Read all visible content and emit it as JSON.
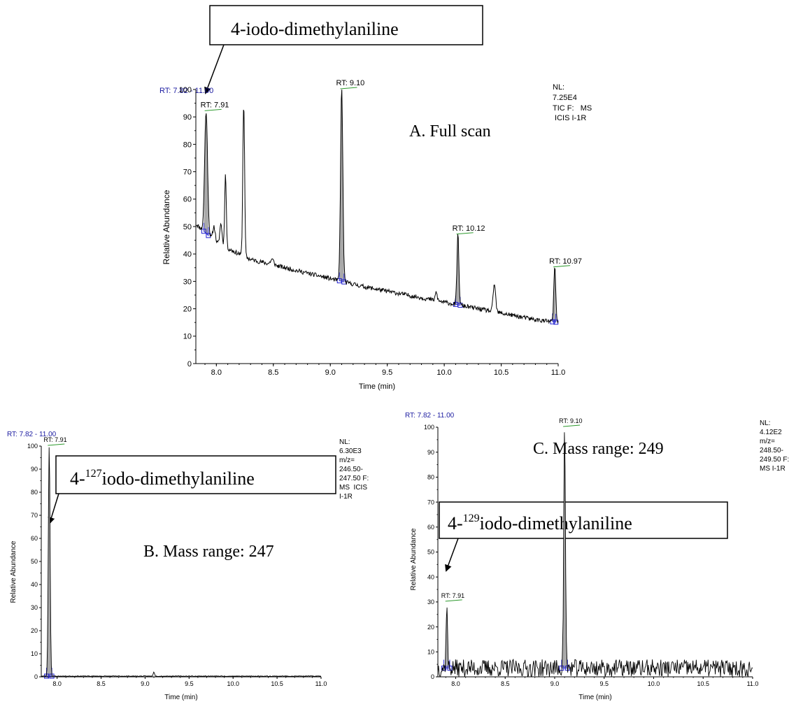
{
  "chart_data": [
    {
      "id": "A",
      "type": "line",
      "panel_label": "A. Full scan",
      "callout_label": "4-iodo-dimethylaniline",
      "rt_range": "RT: 7.82 - 11.00",
      "nl_info": [
        "NL:",
        "7.25E4",
        "TIC F:   MS",
        " ICIS I-1R"
      ],
      "xlabel": "Time (min)",
      "ylabel": "Relative Abundance",
      "xlim": [
        7.82,
        11.0
      ],
      "ylim": [
        0,
        100
      ],
      "xticks": [
        8.0,
        8.5,
        9.0,
        9.5,
        10.0,
        10.5,
        11.0
      ],
      "xtick_labels": [
        "8.0",
        "8.5",
        "9.0",
        "9.5",
        "10.0",
        "10.5",
        "11.0"
      ],
      "yticks": [
        0,
        10,
        20,
        30,
        40,
        50,
        60,
        70,
        80,
        90,
        100
      ],
      "ytick_labels": [
        "0",
        "10",
        "20",
        "30",
        "40",
        "50",
        "60",
        "70",
        "80",
        "90",
        "100"
      ],
      "peak_labels": [
        {
          "x": 7.91,
          "y": 92,
          "label": "RT: 7.91"
        },
        {
          "x": 9.1,
          "y": 100,
          "label": "RT: 9.10"
        },
        {
          "x": 10.12,
          "y": 47,
          "label": "RT: 10.12"
        },
        {
          "x": 10.97,
          "y": 35,
          "label": "RT: 10.97"
        }
      ],
      "peaks": [
        {
          "x": 7.91,
          "y": 92,
          "w": 0.018
        },
        {
          "x": 7.98,
          "y": 50,
          "w": 0.015
        },
        {
          "x": 8.04,
          "y": 51,
          "w": 0.014
        },
        {
          "x": 8.08,
          "y": 69,
          "w": 0.01
        },
        {
          "x": 8.24,
          "y": 95,
          "w": 0.011
        },
        {
          "x": 8.49,
          "y": 38,
          "w": 0.02
        },
        {
          "x": 9.1,
          "y": 100,
          "w": 0.014
        },
        {
          "x": 9.93,
          "y": 26,
          "w": 0.012
        },
        {
          "x": 10.12,
          "y": 47,
          "w": 0.012
        },
        {
          "x": 10.44,
          "y": 29,
          "w": 0.015
        },
        {
          "x": 10.97,
          "y": 35,
          "w": 0.012
        }
      ],
      "baseline": [
        [
          7.82,
          51
        ],
        [
          8.0,
          44
        ],
        [
          8.3,
          38
        ],
        [
          8.8,
          33
        ],
        [
          9.3,
          28
        ],
        [
          9.8,
          24
        ],
        [
          10.3,
          20
        ],
        [
          10.8,
          16
        ],
        [
          11.0,
          15
        ]
      ],
      "noise": 0.8,
      "shaded": [
        [
          7.89,
          7.93
        ],
        [
          9.08,
          9.12
        ],
        [
          10.1,
          10.14
        ],
        [
          10.95,
          10.98
        ]
      ]
    },
    {
      "id": "B",
      "type": "line",
      "panel_label": "B. Mass range: 247",
      "callout_label": "4-127iodo-dimethylaniline",
      "rt_range": "RT: 7.82 - 11.00",
      "nl_info": [
        "NL:",
        "6.30E3",
        "m/z=",
        "246.50-",
        "247.50 F:",
        "MS  ICIS",
        "I-1R"
      ],
      "xlabel": "Time (min)",
      "ylabel": "Relative Abundance",
      "xlim": [
        7.82,
        11.0
      ],
      "ylim": [
        0,
        100
      ],
      "xticks": [
        8.0,
        8.5,
        9.0,
        9.5,
        10.0,
        10.5,
        11.0
      ],
      "xtick_labels": [
        "8.0",
        "8.5",
        "9.0",
        "9.5",
        "10.0",
        "10.5",
        "11.0"
      ],
      "yticks": [
        0,
        10,
        20,
        30,
        40,
        50,
        60,
        70,
        80,
        90,
        100
      ],
      "ytick_labels": [
        "0",
        "10",
        "20",
        "30",
        "40",
        "50",
        "60",
        "70",
        "80",
        "90",
        "100"
      ],
      "peak_labels": [
        {
          "x": 7.91,
          "y": 100,
          "label": "RT: 7.91"
        }
      ],
      "peaks": [
        {
          "x": 7.91,
          "y": 100,
          "w": 0.014
        },
        {
          "x": 9.1,
          "y": 2,
          "w": 0.012
        }
      ],
      "baseline": [
        [
          7.82,
          0.3
        ],
        [
          11.0,
          0.3
        ]
      ],
      "noise": 0.15,
      "shaded": [
        [
          7.88,
          7.94
        ]
      ]
    },
    {
      "id": "C",
      "type": "line",
      "panel_label": "C. Mass range: 249",
      "callout_label": "4-129iodo-dimethylaniline",
      "rt_range": "RT: 7.82 - 11.00",
      "nl_info": [
        "NL:",
        "4.12E2",
        "m/z=",
        "248.50-",
        "249.50 F:",
        "MS I-1R"
      ],
      "xlabel": "Time (min)",
      "ylabel": "Relative Abundance",
      "xlim": [
        7.82,
        11.0
      ],
      "ylim": [
        0,
        100
      ],
      "xticks": [
        8.0,
        8.5,
        9.0,
        9.5,
        10.0,
        10.5,
        11.0
      ],
      "xtick_labels": [
        "8.0",
        "8.5",
        "9.0",
        "9.5",
        "10.0",
        "10.5",
        "11.0"
      ],
      "yticks": [
        0,
        10,
        20,
        30,
        40,
        50,
        60,
        70,
        80,
        90,
        100
      ],
      "ytick_labels": [
        "0",
        "10",
        "20",
        "30",
        "40",
        "50",
        "60",
        "70",
        "80",
        "90",
        "100"
      ],
      "peak_labels": [
        {
          "x": 7.91,
          "y": 30,
          "label": "RT: 7.91"
        },
        {
          "x": 9.1,
          "y": 100,
          "label": "RT: 9.10"
        }
      ],
      "peaks": [
        {
          "x": 7.91,
          "y": 30,
          "w": 0.01
        },
        {
          "x": 9.1,
          "y": 100,
          "w": 0.012
        }
      ],
      "baseline": [
        [
          7.82,
          3.5
        ],
        [
          11.0,
          3.5
        ]
      ],
      "noise": 3.5,
      "shaded": [
        [
          7.88,
          7.94
        ],
        [
          9.07,
          9.13
        ]
      ]
    }
  ]
}
